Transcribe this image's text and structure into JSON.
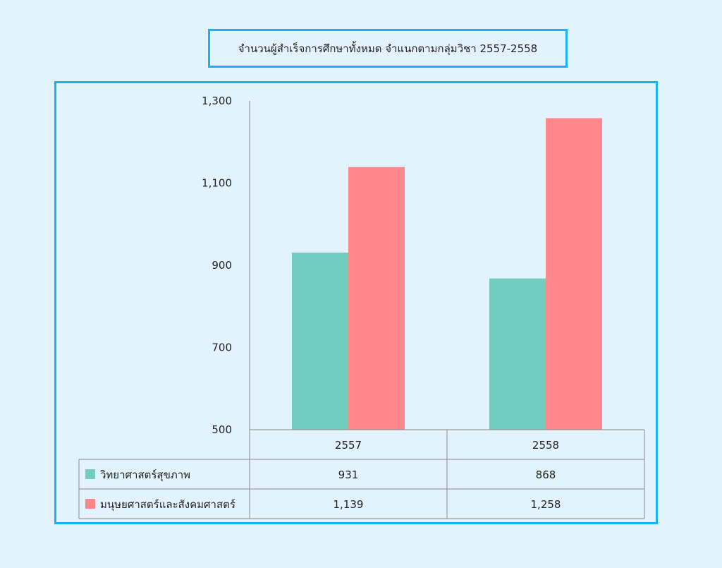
{
  "title": "จำนวนผู้สำเร็จการศึกษาทั้งหมด จำแนกตามกลุ่มวิชา 2557-2558",
  "colors": {
    "series1": "#71cdbf",
    "series2": "#ff878c",
    "frame": "#19b2ee",
    "background": "#e3f3fd",
    "grid": "#8a8a8a"
  },
  "chart_data": {
    "type": "bar",
    "title": "จำนวนผู้สำเร็จการศึกษาทั้งหมด จำแนกตามกลุ่มวิชา 2557-2558",
    "categories": [
      "2557",
      "2558"
    ],
    "series": [
      {
        "name": "วิทยาศาสตร์สุขภาพ",
        "values": [
          931,
          868
        ],
        "labels": [
          "931",
          "868"
        ],
        "color": "#71cdbf"
      },
      {
        "name": "มนุษยศาสตร์และสังคมศาสตร์",
        "values": [
          1139,
          1258
        ],
        "labels": [
          "1,139",
          "1,258"
        ],
        "color": "#ff878c"
      }
    ],
    "ylim": [
      500,
      1300
    ],
    "yticks": [
      500,
      700,
      900,
      1100,
      1300
    ],
    "ytick_labels": [
      "500",
      "700",
      "900",
      "1,100",
      "1,300"
    ],
    "grid": false,
    "legend": "data-table-below"
  }
}
